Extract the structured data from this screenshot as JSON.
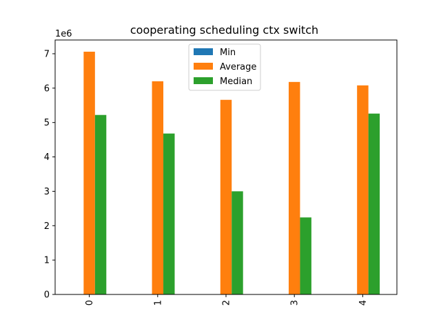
{
  "chart_data": {
    "type": "bar",
    "title": "cooperating scheduling ctx switch",
    "xlabel": "",
    "ylabel": "",
    "y_multiplier_label": "1e6",
    "categories": [
      "0",
      "1",
      "2",
      "3",
      "4"
    ],
    "series": [
      {
        "name": "Min",
        "color": "#1f77b4",
        "values": [
          0,
          0,
          0,
          0,
          0
        ]
      },
      {
        "name": "Average",
        "color": "#ff7f0e",
        "values": [
          7.06,
          6.2,
          5.66,
          6.18,
          6.08
        ]
      },
      {
        "name": "Median",
        "color": "#2ca02c",
        "values": [
          5.22,
          4.68,
          3.0,
          2.24,
          5.26
        ]
      }
    ],
    "ylim": [
      0,
      7.4
    ],
    "yticks": [
      0,
      1,
      2,
      3,
      4,
      5,
      6,
      7
    ],
    "grid": false,
    "legend_position": "top-center",
    "x_tick_rotation": "vertical"
  }
}
